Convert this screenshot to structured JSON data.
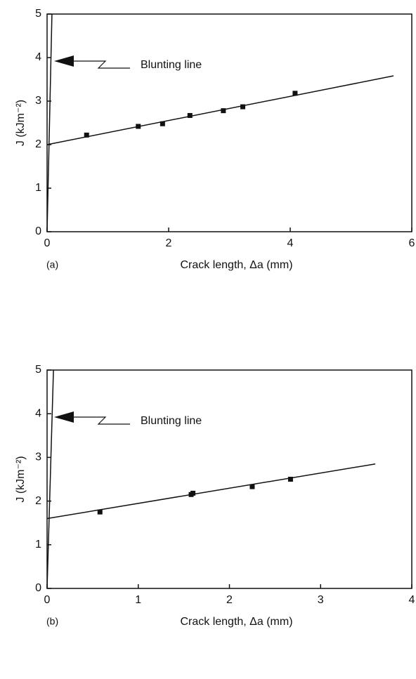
{
  "chart_data": [
    {
      "type": "scatter",
      "panel_label": "(a)",
      "x_label": "Crack length, Δa (mm)",
      "y_label": "J (kJm⁻²)",
      "annotation": "Blunting line",
      "xlim": [
        0,
        6
      ],
      "ylim": [
        0,
        5
      ],
      "xticks": [
        0,
        2,
        4,
        6
      ],
      "yticks": [
        0,
        1,
        2,
        3,
        4,
        5
      ],
      "color": "#111111",
      "points": {
        "x": [
          0.65,
          1.5,
          1.9,
          2.35,
          2.9,
          3.22,
          4.08
        ],
        "values": [
          2.22,
          2.42,
          2.48,
          2.67,
          2.78,
          2.87,
          3.18
        ]
      },
      "fit_line": {
        "x": [
          0,
          5.7
        ],
        "values": [
          2.0,
          3.58
        ]
      },
      "blunting_line": {
        "x": [
          0,
          0.08
        ],
        "values": [
          0,
          5
        ]
      }
    },
    {
      "type": "scatter",
      "panel_label": "(b)",
      "x_label": "Crack length, Δa (mm)",
      "y_label": "J (kJm⁻²)",
      "annotation": "Blunting line",
      "xlim": [
        0,
        4
      ],
      "ylim": [
        0,
        5
      ],
      "xticks": [
        0,
        1,
        2,
        3,
        4
      ],
      "yticks": [
        0,
        1,
        2,
        3,
        4,
        5
      ],
      "color": "#111111",
      "points": {
        "x": [
          0.58,
          1.58,
          1.6,
          2.25,
          2.67
        ],
        "values": [
          1.75,
          2.15,
          2.18,
          2.33,
          2.5
        ]
      },
      "fit_line": {
        "x": [
          0,
          3.6
        ],
        "values": [
          1.6,
          2.85
        ]
      },
      "blunting_line": {
        "x": [
          0,
          0.07
        ],
        "values": [
          0,
          5
        ]
      }
    }
  ]
}
